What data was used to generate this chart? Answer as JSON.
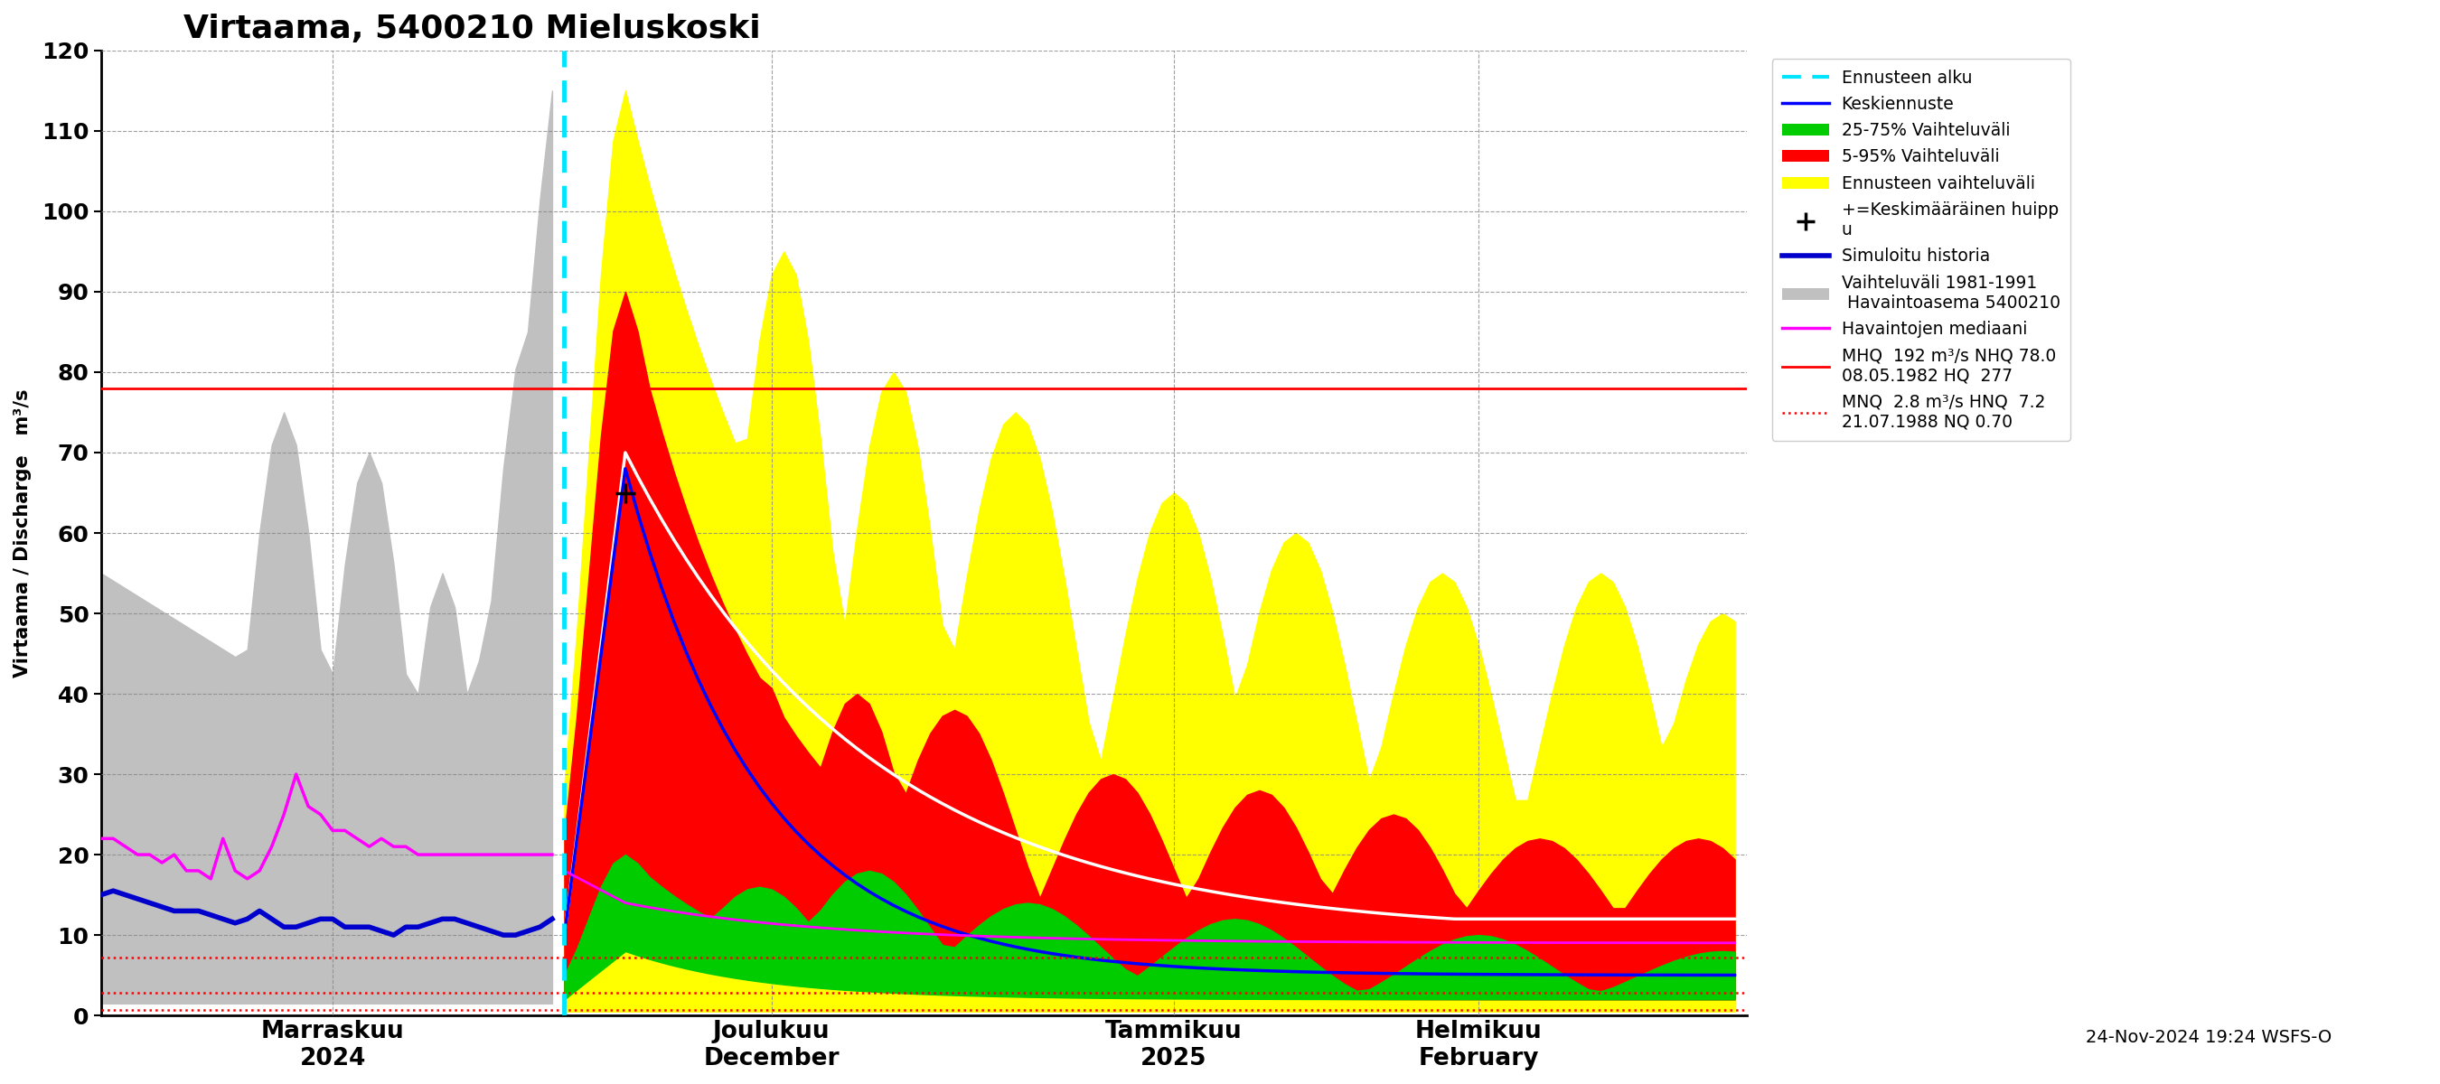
{
  "title": "Virtaama, 5400210 Mieluskoski",
  "ylabel_left": "Virtaama / Discharge   m³/s",
  "ylim": [
    0,
    120
  ],
  "yticks": [
    0,
    10,
    20,
    30,
    40,
    50,
    60,
    70,
    80,
    90,
    100,
    110,
    120
  ],
  "mhq_line": 78,
  "mnq_line": 2.8,
  "hnq_line": 7.2,
  "nq_line": 0.7,
  "background_color": "#ffffff",
  "x_labels": [
    "Marraskuu\n2024",
    "Joulukuu\nDecember",
    "Tammikuu\n2025",
    "Helmikuu\nFebruary"
  ],
  "footer_text": "24-Nov-2024 19:24 WSFS-O"
}
